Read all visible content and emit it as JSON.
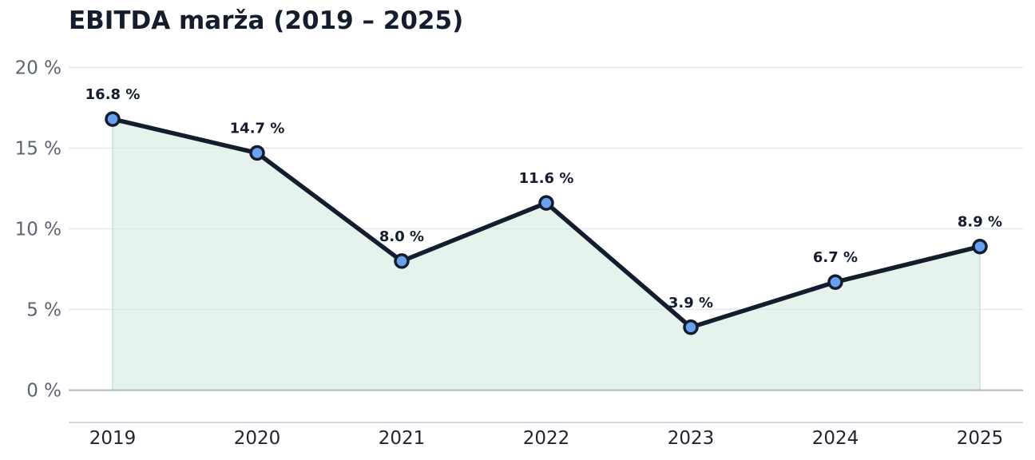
{
  "chart_data": {
    "type": "line",
    "title": "EBITDA marža (2019 – 2025)",
    "xlabel": "",
    "ylabel": "",
    "categories": [
      "2019",
      "2020",
      "2021",
      "2022",
      "2023",
      "2024",
      "2025"
    ],
    "values": [
      16.8,
      14.7,
      8.0,
      11.6,
      3.9,
      6.7,
      8.9
    ],
    "data_labels": [
      "16.8 %",
      "14.7 %",
      "8.0 %",
      "11.6 %",
      "3.9 %",
      "6.7 %",
      "8.9 %"
    ],
    "ylim": [
      -2,
      22
    ],
    "yticks": [
      0,
      5,
      10,
      15,
      20
    ],
    "ytick_labels": [
      "0 %",
      "5 %",
      "10 %",
      "15 %",
      "20 %"
    ],
    "grid": "horizontal",
    "area_fill": true,
    "colors": {
      "line": "#141d2e",
      "marker_fill": "#6aa0f0",
      "area": "#d4ebe0",
      "grid": "#e3e7ee",
      "baseline": "#aeb6c1",
      "axis": "#c8ccd3"
    }
  }
}
